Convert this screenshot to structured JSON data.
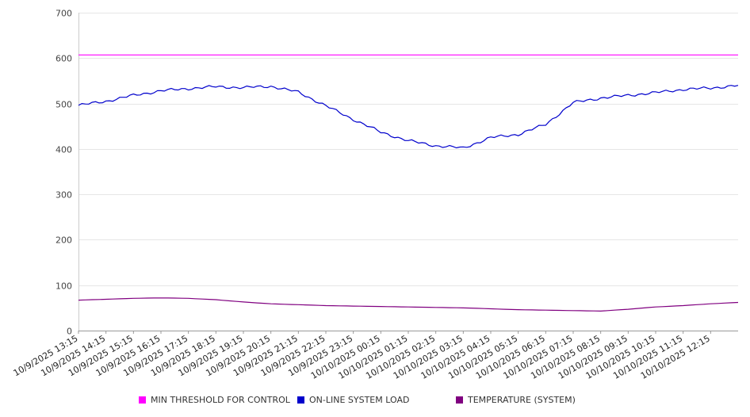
{
  "chart_data": {
    "type": "line",
    "title": "",
    "xlabel": "",
    "ylabel": "",
    "ylim": [
      0,
      700
    ],
    "yticks": [
      0,
      100,
      200,
      300,
      400,
      500,
      600,
      700
    ],
    "grid": true,
    "legend_position": "bottom",
    "x_tick_labels": [
      "10/9/2025 13:15",
      "10/9/2025 14:15",
      "10/9/2025 15:15",
      "10/9/2025 16:15",
      "10/9/2025 17:15",
      "10/9/2025 18:15",
      "10/9/2025 19:15",
      "10/9/2025 20:15",
      "10/9/2025 21:15",
      "10/9/2025 22:15",
      "10/9/2025 23:15",
      "10/10/2025 00:15",
      "10/10/2025 01:15",
      "10/10/2025 02:15",
      "10/10/2025 03:15",
      "10/10/2025 04:15",
      "10/10/2025 05:15",
      "10/10/2025 06:15",
      "10/10/2025 07:15",
      "10/10/2025 08:15",
      "10/10/2025 09:15",
      "10/10/2025 10:15",
      "10/10/2025 11:15",
      "10/10/2025 12:15"
    ],
    "x": [
      "10/9/2025 13:15",
      "10/9/2025 14:15",
      "10/9/2025 15:15",
      "10/9/2025 16:15",
      "10/9/2025 17:15",
      "10/9/2025 18:15",
      "10/9/2025 19:15",
      "10/9/2025 20:15",
      "10/9/2025 21:15",
      "10/9/2025 22:15",
      "10/9/2025 23:15",
      "10/10/2025 00:15",
      "10/10/2025 01:15",
      "10/10/2025 02:15",
      "10/10/2025 03:15",
      "10/10/2025 04:15",
      "10/10/2025 05:15",
      "10/10/2025 06:15",
      "10/10/2025 07:15",
      "10/10/2025 08:15",
      "10/10/2025 09:15",
      "10/10/2025 10:15",
      "10/10/2025 11:15",
      "10/10/2025 12:15",
      "10/10/2025 13:15"
    ],
    "series": [
      {
        "name": "MIN THRESHOLD FOR CONTROL",
        "color": "#ff00ff",
        "values": [
          607,
          607,
          607,
          607,
          607,
          607,
          607,
          607,
          607,
          607,
          607,
          607,
          607,
          607,
          607,
          607,
          607,
          607,
          607,
          607,
          607,
          607,
          607,
          607,
          607
        ]
      },
      {
        "name": "ON-LINE SYSTEM LOAD",
        "color": "#0000cc",
        "values": [
          496,
          505,
          518,
          528,
          533,
          537,
          535,
          538,
          525,
          495,
          465,
          437,
          418,
          407,
          402,
          425,
          432,
          454,
          502,
          512,
          518,
          524,
          531,
          534,
          540
        ]
      },
      {
        "name": "TEMPERATURE (SYSTEM)",
        "color": "#800080",
        "values": [
          67,
          69,
          71,
          72,
          71,
          68,
          63,
          59,
          57,
          55,
          54,
          53,
          52,
          51,
          50,
          48,
          46,
          45,
          44,
          43,
          47,
          52,
          55,
          59,
          62
        ]
      }
    ]
  }
}
